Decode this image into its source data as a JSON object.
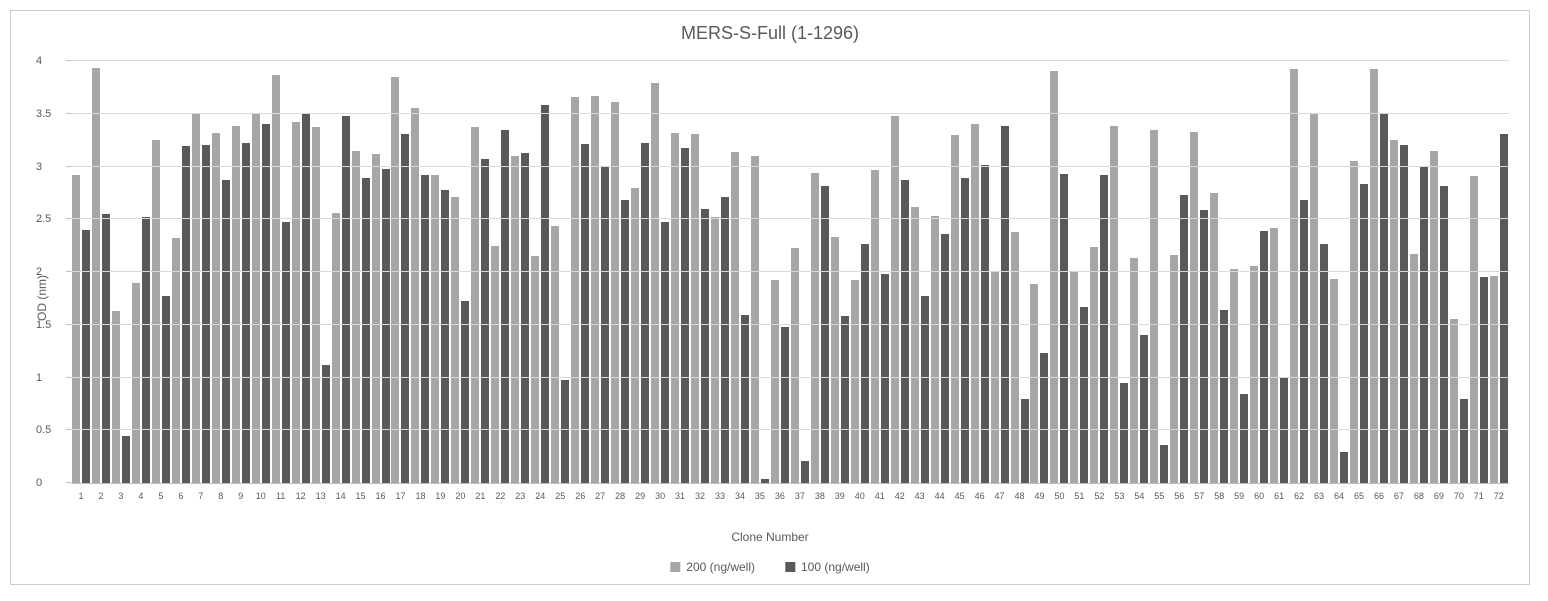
{
  "chart": {
    "type": "bar",
    "title": "MERS-S-Full (1-1296)",
    "title_fontsize": 18,
    "ylabel": "OD (nm)",
    "xlabel": "Clone Number",
    "label_fontsize": 12,
    "ylim": [
      0,
      4
    ],
    "ytick_step": 0.5,
    "yticks": [
      0,
      0.5,
      1,
      1.5,
      2,
      2.5,
      3,
      3.5,
      4
    ],
    "background_color": "#ffffff",
    "grid_color": "#d9d9d9",
    "border_color": "#cccccc",
    "axis_color": "#bfbfbf",
    "text_color": "#595959",
    "series": [
      {
        "name": "200 (ng/well)",
        "color": "#a6a6a6"
      },
      {
        "name": "100 (ng/well)",
        "color": "#595959"
      }
    ],
    "categories": [
      1,
      2,
      3,
      4,
      5,
      6,
      7,
      8,
      9,
      10,
      11,
      12,
      13,
      14,
      15,
      16,
      17,
      18,
      19,
      20,
      21,
      22,
      23,
      24,
      25,
      26,
      27,
      28,
      29,
      30,
      31,
      32,
      33,
      34,
      35,
      36,
      37,
      38,
      39,
      40,
      41,
      42,
      43,
      44,
      45,
      46,
      47,
      48,
      49,
      50,
      51,
      52,
      53,
      54,
      55,
      56,
      57,
      58,
      59,
      60,
      61,
      62,
      63,
      64,
      65,
      66,
      67,
      68,
      69,
      70,
      71,
      72
    ],
    "data": [
      {
        "c": 1,
        "s200": 2.92,
        "s100": 2.4
      },
      {
        "c": 2,
        "s200": 3.93,
        "s100": 2.55
      },
      {
        "c": 3,
        "s200": 1.63,
        "s100": 0.45
      },
      {
        "c": 4,
        "s200": 1.9,
        "s100": 2.52
      },
      {
        "c": 5,
        "s200": 3.25,
        "s100": 1.77
      },
      {
        "c": 6,
        "s200": 2.32,
        "s100": 3.19
      },
      {
        "c": 7,
        "s200": 3.5,
        "s100": 3.2
      },
      {
        "c": 8,
        "s200": 3.32,
        "s100": 2.87
      },
      {
        "c": 9,
        "s200": 3.38,
        "s100": 3.22
      },
      {
        "c": 10,
        "s200": 3.5,
        "s100": 3.4
      },
      {
        "c": 11,
        "s200": 3.87,
        "s100": 2.47
      },
      {
        "c": 12,
        "s200": 3.42,
        "s100": 3.51
      },
      {
        "c": 13,
        "s200": 3.37,
        "s100": 1.12
      },
      {
        "c": 14,
        "s200": 2.56,
        "s100": 3.48
      },
      {
        "c": 15,
        "s200": 3.15,
        "s100": 2.89
      },
      {
        "c": 16,
        "s200": 3.12,
        "s100": 2.98
      },
      {
        "c": 17,
        "s200": 3.85,
        "s100": 3.31
      },
      {
        "c": 18,
        "s200": 3.55,
        "s100": 2.92
      },
      {
        "c": 19,
        "s200": 2.92,
        "s100": 2.78
      },
      {
        "c": 20,
        "s200": 2.71,
        "s100": 1.73
      },
      {
        "c": 21,
        "s200": 3.37,
        "s100": 3.07
      },
      {
        "c": 22,
        "s200": 2.25,
        "s100": 3.35
      },
      {
        "c": 23,
        "s200": 3.1,
        "s100": 3.13
      },
      {
        "c": 24,
        "s200": 2.15,
        "s100": 3.58
      },
      {
        "c": 25,
        "s200": 2.44,
        "s100": 0.98
      },
      {
        "c": 26,
        "s200": 3.66,
        "s100": 3.21
      },
      {
        "c": 27,
        "s200": 3.67,
        "s100": 3.0
      },
      {
        "c": 28,
        "s200": 3.61,
        "s100": 2.68
      },
      {
        "c": 29,
        "s200": 2.8,
        "s100": 3.22
      },
      {
        "c": 30,
        "s200": 3.79,
        "s100": 2.47
      },
      {
        "c": 31,
        "s200": 3.32,
        "s100": 3.18
      },
      {
        "c": 32,
        "s200": 3.31,
        "s100": 2.6
      },
      {
        "c": 33,
        "s200": 2.52,
        "s100": 2.71
      },
      {
        "c": 34,
        "s200": 3.14,
        "s100": 1.59
      },
      {
        "c": 35,
        "s200": 3.1,
        "s100": 0.04
      },
      {
        "c": 36,
        "s200": 1.92,
        "s100": 1.48
      },
      {
        "c": 37,
        "s200": 2.23,
        "s100": 0.21
      },
      {
        "c": 38,
        "s200": 2.94,
        "s100": 2.82
      },
      {
        "c": 39,
        "s200": 2.33,
        "s100": 1.58
      },
      {
        "c": 40,
        "s200": 1.92,
        "s100": 2.27
      },
      {
        "c": 41,
        "s200": 2.97,
        "s100": 1.98
      },
      {
        "c": 42,
        "s200": 3.48,
        "s100": 2.87
      },
      {
        "c": 43,
        "s200": 2.62,
        "s100": 1.77
      },
      {
        "c": 44,
        "s200": 2.53,
        "s100": 2.36
      },
      {
        "c": 45,
        "s200": 3.3,
        "s100": 2.89
      },
      {
        "c": 46,
        "s200": 3.4,
        "s100": 3.01
      },
      {
        "c": 47,
        "s200": 2.01,
        "s100": 3.38
      },
      {
        "c": 48,
        "s200": 2.38,
        "s100": 0.8
      },
      {
        "c": 49,
        "s200": 1.89,
        "s100": 1.23
      },
      {
        "c": 50,
        "s200": 3.91,
        "s100": 2.93
      },
      {
        "c": 51,
        "s200": 2.01,
        "s100": 1.67
      },
      {
        "c": 52,
        "s200": 2.24,
        "s100": 2.92
      },
      {
        "c": 53,
        "s200": 3.38,
        "s100": 0.95
      },
      {
        "c": 54,
        "s200": 2.13,
        "s100": 1.4
      },
      {
        "c": 55,
        "s200": 3.35,
        "s100": 0.36
      },
      {
        "c": 56,
        "s200": 2.16,
        "s100": 2.73
      },
      {
        "c": 57,
        "s200": 3.33,
        "s100": 2.59
      },
      {
        "c": 58,
        "s200": 2.75,
        "s100": 1.64
      },
      {
        "c": 59,
        "s200": 2.03,
        "s100": 0.84
      },
      {
        "c": 60,
        "s200": 2.06,
        "s100": 2.39
      },
      {
        "c": 61,
        "s200": 2.42,
        "s100": 1.0
      },
      {
        "c": 62,
        "s200": 3.92,
        "s100": 2.68
      },
      {
        "c": 63,
        "s200": 3.51,
        "s100": 2.27
      },
      {
        "c": 64,
        "s200": 1.93,
        "s100": 0.29
      },
      {
        "c": 65,
        "s200": 3.05,
        "s100": 2.83
      },
      {
        "c": 66,
        "s200": 3.92,
        "s100": 3.51
      },
      {
        "c": 67,
        "s200": 3.25,
        "s100": 3.2
      },
      {
        "c": 68,
        "s200": 2.17,
        "s100": 3.0
      },
      {
        "c": 69,
        "s200": 3.15,
        "s100": 2.82
      },
      {
        "c": 70,
        "s200": 1.55,
        "s100": 0.8
      },
      {
        "c": 71,
        "s200": 2.91,
        "s100": 1.95
      },
      {
        "c": 72,
        "s200": 1.96,
        "s100": 3.31
      }
    ],
    "legend_position": "bottom",
    "bar_gap": 2,
    "font_family": "Arial, sans-serif",
    "tick_fontsize": 11,
    "xtick_fontsize": 9
  }
}
